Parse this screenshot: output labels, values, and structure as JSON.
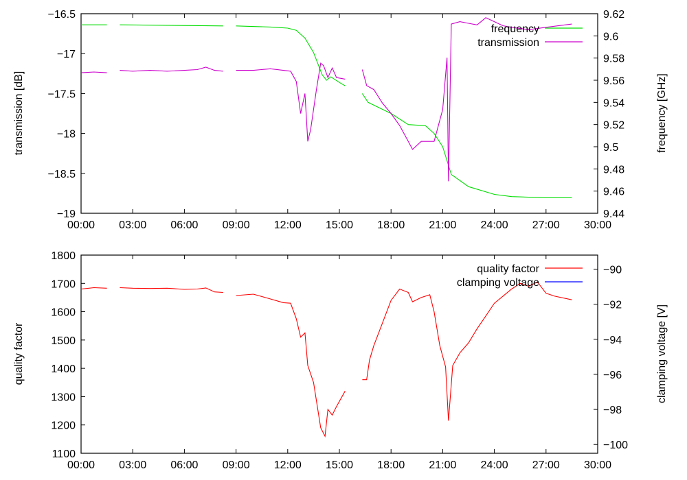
{
  "chart_data": [
    {
      "type": "line",
      "title": "",
      "xlabel": "",
      "ylabel": "transmission [dB]",
      "y2label": "frequency [GHz]",
      "xlim": [
        "00:00",
        "30:00"
      ],
      "ylim": [
        -19,
        -16.5
      ],
      "y2lim": [
        9.44,
        9.62
      ],
      "grid": false,
      "legend": "top-right",
      "x_ticks": [
        "00:00",
        "03:00",
        "06:00",
        "09:00",
        "12:00",
        "15:00",
        "18:00",
        "21:00",
        "24:00",
        "27:00",
        "30:00"
      ],
      "y_ticks": [
        "-16.5",
        "-17",
        "-17.5",
        "-18",
        "-18.5",
        "-19"
      ],
      "y2_ticks": [
        "9.62",
        "9.6",
        "9.58",
        "9.56",
        "9.54",
        "9.52",
        "9.5",
        "9.48",
        "9.46",
        "9.44"
      ],
      "series": [
        {
          "name": "frequency",
          "color": "#00dd00",
          "axis": "y2",
          "segments": [
            [
              [
                "00:00",
                9.61
              ],
              [
                "01:30",
                9.61
              ]
            ],
            [
              [
                "02:15",
                9.61
              ],
              [
                "08:15",
                9.609
              ]
            ],
            [
              [
                "09:00",
                9.609
              ],
              [
                "11:00",
                9.608
              ],
              [
                "12:00",
                9.607
              ],
              [
                "12:30",
                9.605
              ],
              [
                "13:00",
                9.598
              ],
              [
                "13:30",
                9.585
              ],
              [
                "14:00",
                9.565
              ],
              [
                "14:15",
                9.56
              ],
              [
                "14:30",
                9.563
              ],
              [
                "15:00",
                9.558
              ],
              [
                "15:20",
                9.555
              ]
            ],
            [
              [
                "16:20",
                9.548
              ],
              [
                "16:40",
                9.54
              ],
              [
                "18:00",
                9.53
              ],
              [
                "19:00",
                9.52
              ],
              [
                "20:00",
                9.519
              ],
              [
                "20:30",
                9.512
              ],
              [
                "21:00",
                9.5
              ],
              [
                "21:30",
                9.475
              ],
              [
                "22:30",
                9.464
              ],
              [
                "24:00",
                9.457
              ],
              [
                "25:00",
                9.455
              ],
              [
                "27:00",
                9.454
              ],
              [
                "28:30",
                9.454
              ]
            ]
          ]
        },
        {
          "name": "transmission",
          "color": "#cc00cc",
          "axis": "y",
          "segments": [
            [
              [
                "00:00",
                -17.24
              ],
              [
                "00:45",
                -17.23
              ],
              [
                "01:30",
                -17.24
              ]
            ],
            [
              [
                "02:15",
                -17.21
              ],
              [
                "03:00",
                -17.22
              ],
              [
                "04:00",
                -17.21
              ],
              [
                "05:00",
                -17.22
              ],
              [
                "06:00",
                -17.21
              ],
              [
                "06:45",
                -17.2
              ],
              [
                "07:15",
                -17.17
              ],
              [
                "07:45",
                -17.21
              ],
              [
                "08:15",
                -17.22
              ]
            ],
            [
              [
                "09:00",
                -17.21
              ],
              [
                "10:00",
                -17.21
              ],
              [
                "11:00",
                -17.19
              ],
              [
                "11:45",
                -17.21
              ],
              [
                "12:10",
                -17.22
              ],
              [
                "12:30",
                -17.35
              ],
              [
                "12:45",
                -17.75
              ],
              [
                "13:00",
                -17.5
              ],
              [
                "13:10",
                -18.1
              ],
              [
                "13:20",
                -17.95
              ],
              [
                "13:40",
                -17.45
              ],
              [
                "13:55",
                -17.12
              ],
              [
                "14:05",
                -17.15
              ],
              [
                "14:20",
                -17.3
              ],
              [
                "14:35",
                -17.18
              ],
              [
                "14:50",
                -17.3
              ],
              [
                "15:20",
                -17.32
              ]
            ],
            [
              [
                "16:20",
                -17.2
              ],
              [
                "16:35",
                -17.4
              ],
              [
                "17:00",
                -17.45
              ],
              [
                "17:30",
                -17.62
              ],
              [
                "18:00",
                -17.75
              ],
              [
                "18:30",
                -17.9
              ],
              [
                "19:00",
                -18.1
              ],
              [
                "19:15",
                -18.2
              ],
              [
                "19:45",
                -18.1
              ],
              [
                "20:30",
                -18.1
              ],
              [
                "21:00",
                -17.7
              ],
              [
                "21:15",
                -17.05
              ],
              [
                "21:20",
                -18.6
              ],
              [
                "21:30",
                -16.63
              ],
              [
                "22:00",
                -16.6
              ],
              [
                "22:30",
                -16.62
              ],
              [
                "23:00",
                -16.64
              ],
              [
                "23:30",
                -16.55
              ],
              [
                "24:00",
                -16.6
              ],
              [
                "24:30",
                -16.65
              ],
              [
                "25:00",
                -16.67
              ],
              [
                "26:00",
                -16.7
              ],
              [
                "27:00",
                -16.67
              ],
              [
                "28:30",
                -16.63
              ]
            ]
          ]
        }
      ]
    },
    {
      "type": "line",
      "title": "",
      "xlabel": "",
      "ylabel": "quality factor",
      "y2label": "clamping voltage [V]",
      "xlim": [
        "00:00",
        "30:00"
      ],
      "ylim": [
        1100,
        1800
      ],
      "y2lim": [
        -100.5,
        -89.2
      ],
      "grid": false,
      "legend": "top-right",
      "x_ticks": [
        "00:00",
        "03:00",
        "06:00",
        "09:00",
        "12:00",
        "15:00",
        "18:00",
        "21:00",
        "24:00",
        "27:00",
        "30:00"
      ],
      "y_ticks": [
        "1800",
        "1700",
        "1600",
        "1500",
        "1400",
        "1300",
        "1200",
        "1100"
      ],
      "y2_ticks": [
        "-90",
        "-92",
        "-94",
        "-96",
        "-98",
        "-100"
      ],
      "series": [
        {
          "name": "quality factor",
          "color": "#ff0000",
          "axis": "y",
          "segments": [
            [
              [
                "00:00",
                1680
              ],
              [
                "00:45",
                1685
              ],
              [
                "01:30",
                1683
              ]
            ],
            [
              [
                "02:15",
                1685
              ],
              [
                "03:00",
                1683
              ],
              [
                "04:00",
                1682
              ],
              [
                "05:00",
                1683
              ],
              [
                "06:00",
                1679
              ],
              [
                "06:45",
                1680
              ],
              [
                "07:15",
                1684
              ],
              [
                "07:45",
                1670
              ],
              [
                "08:15",
                1668
              ]
            ],
            [
              [
                "09:00",
                1657
              ],
              [
                "10:00",
                1662
              ],
              [
                "11:00",
                1645
              ],
              [
                "11:45",
                1632
              ],
              [
                "12:10",
                1630
              ],
              [
                "12:30",
                1575
              ],
              [
                "12:45",
                1510
              ],
              [
                "13:00",
                1525
              ],
              [
                "13:10",
                1410
              ],
              [
                "13:30",
                1350
              ],
              [
                "13:55",
                1190
              ],
              [
                "14:10",
                1160
              ],
              [
                "14:20",
                1255
              ],
              [
                "14:35",
                1235
              ],
              [
                "14:50",
                1265
              ],
              [
                "15:20",
                1320
              ]
            ],
            [
              [
                "16:20",
                1360
              ],
              [
                "16:35",
                1360
              ],
              [
                "16:45",
                1430
              ],
              [
                "17:00",
                1480
              ],
              [
                "17:30",
                1560
              ],
              [
                "18:00",
                1640
              ],
              [
                "18:30",
                1680
              ],
              [
                "19:00",
                1668
              ],
              [
                "19:15",
                1635
              ],
              [
                "19:45",
                1650
              ],
              [
                "20:15",
                1660
              ],
              [
                "20:30",
                1600
              ],
              [
                "20:50",
                1480
              ],
              [
                "21:10",
                1405
              ],
              [
                "21:20",
                1215
              ],
              [
                "21:35",
                1410
              ],
              [
                "22:00",
                1455
              ],
              [
                "22:30",
                1490
              ],
              [
                "23:00",
                1540
              ],
              [
                "23:30",
                1585
              ],
              [
                "24:00",
                1630
              ],
              [
                "24:30",
                1655
              ],
              [
                "25:00",
                1680
              ],
              [
                "25:30",
                1700
              ],
              [
                "26:00",
                1690
              ],
              [
                "26:30",
                1705
              ],
              [
                "27:00",
                1665
              ],
              [
                "27:30",
                1655
              ],
              [
                "28:30",
                1642
              ]
            ]
          ]
        },
        {
          "name": "clamping voltage",
          "color": "#0000ff",
          "axis": "y2",
          "segments": []
        }
      ]
    }
  ]
}
